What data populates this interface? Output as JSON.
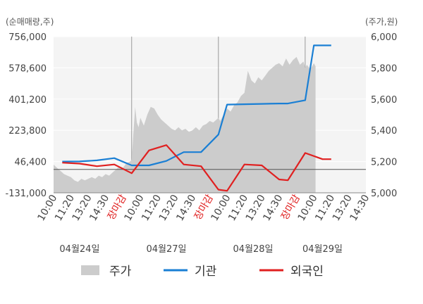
{
  "chart_data": {
    "type": "line",
    "left_axis_label": "(순매매량,주)",
    "right_axis_label": "(주가,원)",
    "left_axis": {
      "ylim": [
        -131000,
        756000
      ],
      "ticks": [
        756000,
        578600,
        401200,
        223800,
        46400,
        -131000
      ],
      "tick_labels": [
        "756,000",
        "578,600",
        "401,200",
        "223,800",
        "46,400",
        "-131,000"
      ]
    },
    "right_axis": {
      "ylim": [
        5000,
        6000
      ],
      "ticks": [
        6000,
        5800,
        5600,
        5400,
        5200,
        5000
      ],
      "tick_labels": [
        "6,000",
        "5,800",
        "5,600",
        "5,400",
        "5,200",
        "5,000"
      ]
    },
    "reference_line_value": 5150,
    "x_ticks": [
      {
        "label": "10:00",
        "closing": false
      },
      {
        "label": "11:20",
        "closing": false
      },
      {
        "label": "13:20",
        "closing": false
      },
      {
        "label": "14:30",
        "closing": false
      },
      {
        "label": "장마감",
        "closing": true
      },
      {
        "label": "10:00",
        "closing": false
      },
      {
        "label": "11:20",
        "closing": false
      },
      {
        "label": "13:20",
        "closing": false
      },
      {
        "label": "14:30",
        "closing": false
      },
      {
        "label": "장마감",
        "closing": true
      },
      {
        "label": "10:00",
        "closing": false
      },
      {
        "label": "11:20",
        "closing": false
      },
      {
        "label": "13:20",
        "closing": false
      },
      {
        "label": "14:30",
        "closing": false
      },
      {
        "label": "장마감",
        "closing": true
      },
      {
        "label": "10:00",
        "closing": false
      },
      {
        "label": "11:20",
        "closing": false
      },
      {
        "label": "13:20",
        "closing": false
      },
      {
        "label": "14:30",
        "closing": false
      }
    ],
    "day_labels": [
      {
        "label": "04월24일",
        "at_tick": 1.5
      },
      {
        "label": "04월27일",
        "at_tick": 6.5
      },
      {
        "label": "04월28일",
        "at_tick": 11.5
      },
      {
        "label": "04월29일",
        "at_tick": 15.5
      }
    ],
    "day_separators_at_tick": [
      4.5,
      9.5,
      14.5
    ],
    "price_series": {
      "name": "주가",
      "color": "#cccccc",
      "points": [
        [
          0,
          5180
        ],
        [
          0.2,
          5160
        ],
        [
          0.4,
          5140
        ],
        [
          0.6,
          5120
        ],
        [
          0.8,
          5110
        ],
        [
          1.0,
          5100
        ],
        [
          1.2,
          5080
        ],
        [
          1.4,
          5070
        ],
        [
          1.6,
          5090
        ],
        [
          1.8,
          5080
        ],
        [
          2.0,
          5090
        ],
        [
          2.2,
          5100
        ],
        [
          2.4,
          5090
        ],
        [
          2.6,
          5110
        ],
        [
          2.8,
          5100
        ],
        [
          3.0,
          5120
        ],
        [
          3.2,
          5110
        ],
        [
          3.4,
          5130
        ],
        [
          3.6,
          5150
        ],
        [
          3.8,
          5170
        ],
        [
          4.0,
          5160
        ],
        [
          4.2,
          5190
        ],
        [
          4.4,
          5200
        ],
        [
          4.5,
          5210
        ],
        [
          4.6,
          5380
        ],
        [
          4.7,
          5550
        ],
        [
          4.8,
          5450
        ],
        [
          4.9,
          5420
        ],
        [
          5.0,
          5480
        ],
        [
          5.2,
          5430
        ],
        [
          5.4,
          5500
        ],
        [
          5.6,
          5550
        ],
        [
          5.8,
          5540
        ],
        [
          6.0,
          5500
        ],
        [
          6.2,
          5470
        ],
        [
          6.4,
          5450
        ],
        [
          6.6,
          5430
        ],
        [
          6.8,
          5410
        ],
        [
          7.0,
          5400
        ],
        [
          7.2,
          5420
        ],
        [
          7.4,
          5400
        ],
        [
          7.6,
          5410
        ],
        [
          7.8,
          5390
        ],
        [
          8.0,
          5400
        ],
        [
          8.2,
          5420
        ],
        [
          8.4,
          5400
        ],
        [
          8.6,
          5430
        ],
        [
          8.8,
          5440
        ],
        [
          9.0,
          5460
        ],
        [
          9.2,
          5450
        ],
        [
          9.4,
          5470
        ],
        [
          9.5,
          5480
        ],
        [
          9.6,
          5460
        ],
        [
          9.8,
          5500
        ],
        [
          10.0,
          5540
        ],
        [
          10.2,
          5520
        ],
        [
          10.4,
          5560
        ],
        [
          10.6,
          5580
        ],
        [
          10.8,
          5620
        ],
        [
          11.0,
          5640
        ],
        [
          11.2,
          5780
        ],
        [
          11.4,
          5720
        ],
        [
          11.6,
          5700
        ],
        [
          11.8,
          5740
        ],
        [
          12.0,
          5720
        ],
        [
          12.2,
          5750
        ],
        [
          12.4,
          5780
        ],
        [
          12.6,
          5800
        ],
        [
          12.8,
          5820
        ],
        [
          13.0,
          5830
        ],
        [
          13.2,
          5810
        ],
        [
          13.4,
          5860
        ],
        [
          13.6,
          5820
        ],
        [
          13.8,
          5850
        ],
        [
          14.0,
          5870
        ],
        [
          14.2,
          5820
        ],
        [
          14.4,
          5840
        ],
        [
          14.5,
          5800
        ],
        [
          14.6,
          5820
        ],
        [
          14.8,
          5790
        ],
        [
          15.0,
          5830
        ],
        [
          15.1,
          5810
        ]
      ]
    },
    "institution_series": {
      "name": "기관",
      "color": "#1a7fd4",
      "points": [
        [
          0.5,
          46400
        ],
        [
          1.5,
          47000
        ],
        [
          2.5,
          53000
        ],
        [
          3.5,
          66000
        ],
        [
          4.5,
          25000
        ],
        [
          5.0,
          25000
        ],
        [
          5.5,
          25000
        ],
        [
          6.5,
          50000
        ],
        [
          7.5,
          100000
        ],
        [
          8.5,
          100000
        ],
        [
          9.5,
          200000
        ],
        [
          10.0,
          370000
        ],
        [
          11.0,
          372000
        ],
        [
          12.0,
          374000
        ],
        [
          13.0,
          376000
        ],
        [
          13.5,
          376000
        ],
        [
          14.5,
          395000
        ],
        [
          15.0,
          706000
        ],
        [
          16.0,
          706000
        ]
      ]
    },
    "foreign_series": {
      "name": "외국인",
      "color": "#e02020",
      "points": [
        [
          0.5,
          40000
        ],
        [
          1.5,
          35000
        ],
        [
          2.5,
          20000
        ],
        [
          3.5,
          30000
        ],
        [
          4.5,
          -20000
        ],
        [
          5.5,
          110000
        ],
        [
          6.5,
          140000
        ],
        [
          7.5,
          30000
        ],
        [
          8.5,
          20000
        ],
        [
          9.5,
          -113000
        ],
        [
          10.0,
          -120000
        ],
        [
          11.0,
          30000
        ],
        [
          12.0,
          25000
        ],
        [
          13.0,
          -55000
        ],
        [
          13.5,
          -60000
        ],
        [
          14.5,
          95000
        ],
        [
          15.5,
          60000
        ],
        [
          16.0,
          60000
        ]
      ]
    },
    "legend": [
      {
        "name": "주가",
        "kind": "area",
        "color": "#cccccc"
      },
      {
        "name": "기관",
        "kind": "line",
        "color": "#1a7fd4"
      },
      {
        "name": "외국인",
        "kind": "line",
        "color": "#e02020"
      }
    ],
    "legend_position": "bottom",
    "grid": true
  }
}
